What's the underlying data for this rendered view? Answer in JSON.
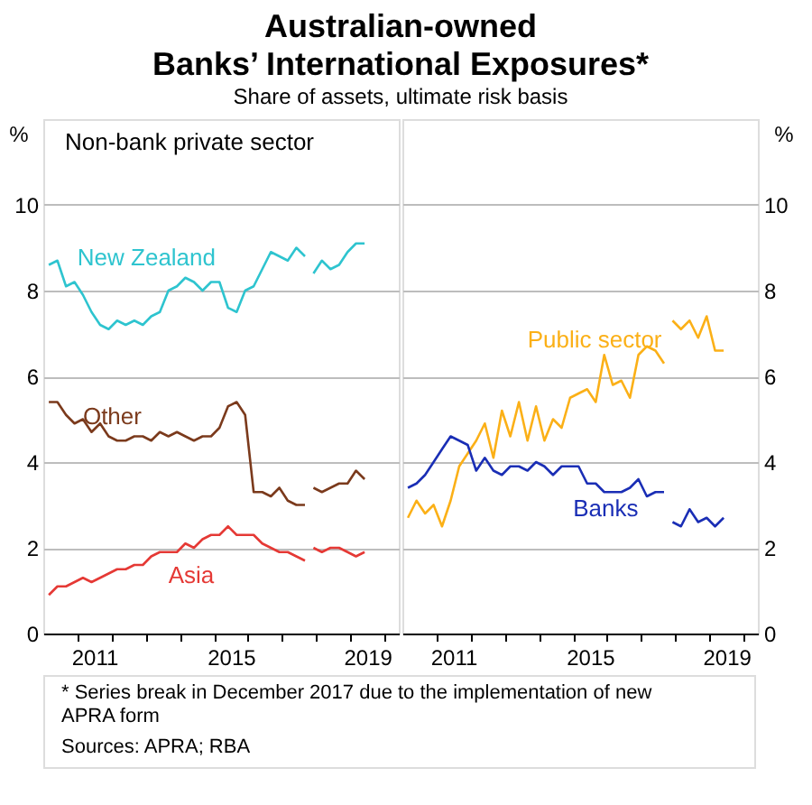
{
  "chart_data": [
    {
      "type": "line",
      "title": "Australian-owned\nBanks’ International Exposures*",
      "subtitle": "Share of assets, ultimate risk basis",
      "annotations": [
        "Non-bank private sector",
        "* Series break in December 2017 due to the implementation of new APRA form",
        "Sources: APRA; RBA"
      ],
      "x": [
        "2010-03",
        "2010-06",
        "2010-09",
        "2010-12",
        "2011-03",
        "2011-06",
        "2011-09",
        "2011-12",
        "2012-03",
        "2012-06",
        "2012-09",
        "2012-12",
        "2013-03",
        "2013-06",
        "2013-09",
        "2013-12",
        "2014-03",
        "2014-06",
        "2014-09",
        "2014-12",
        "2015-03",
        "2015-06",
        "2015-09",
        "2015-12",
        "2016-03",
        "2016-06",
        "2016-09",
        "2016-12",
        "2017-03",
        "2017-06",
        "2017-09",
        "2017-11",
        "2017-12",
        "2018-03",
        "2018-06",
        "2018-09",
        "2018-12",
        "2019-03",
        "2019-06"
      ],
      "series": [
        {
          "name": "New Zealand",
          "color": "#2ec4cf",
          "values": [
            8.6,
            8.7,
            8.1,
            8.2,
            7.9,
            7.5,
            7.2,
            7.1,
            7.3,
            7.2,
            7.3,
            7.2,
            7.4,
            7.5,
            8.0,
            8.1,
            8.3,
            8.2,
            8.0,
            8.2,
            8.2,
            7.6,
            7.5,
            8.0,
            8.1,
            8.5,
            8.9,
            8.8,
            8.7,
            9.0,
            8.8,
            null,
            8.4,
            8.7,
            8.5,
            8.6,
            8.9,
            9.1,
            9.1
          ]
        },
        {
          "name": "Other",
          "color": "#7b3a1c",
          "values": [
            5.4,
            5.4,
            5.1,
            4.9,
            5.0,
            4.7,
            4.9,
            4.6,
            4.5,
            4.5,
            4.6,
            4.6,
            4.5,
            4.7,
            4.6,
            4.7,
            4.6,
            4.5,
            4.6,
            4.6,
            4.8,
            5.3,
            5.4,
            5.1,
            3.3,
            3.3,
            3.2,
            3.4,
            3.1,
            3.0,
            3.0,
            null,
            3.4,
            3.3,
            3.4,
            3.5,
            3.5,
            3.8,
            3.6
          ]
        },
        {
          "name": "Asia",
          "color": "#e53935",
          "values": [
            0.9,
            1.1,
            1.1,
            1.2,
            1.3,
            1.2,
            1.3,
            1.4,
            1.5,
            1.5,
            1.6,
            1.6,
            1.8,
            1.9,
            1.9,
            1.9,
            2.1,
            2.0,
            2.2,
            2.3,
            2.3,
            2.5,
            2.3,
            2.3,
            2.3,
            2.1,
            2.0,
            1.9,
            1.9,
            1.8,
            1.7,
            null,
            2.0,
            1.9,
            2.0,
            2.0,
            1.9,
            1.8,
            1.9
          ]
        }
      ],
      "xlim": [
        "2010-01",
        "2020-06"
      ],
      "xticks": [
        {
          "value": "2011",
          "label": null
        },
        {
          "value": "2011-07",
          "label": "2011"
        },
        {
          "value": "2012",
          "label": null
        },
        {
          "value": "2013",
          "label": null
        },
        {
          "value": "2014",
          "label": null
        },
        {
          "value": "2015",
          "label": null
        },
        {
          "value": "2015-07",
          "label": "2015"
        },
        {
          "value": "2016",
          "label": null
        },
        {
          "value": "2017",
          "label": null
        },
        {
          "value": "2018",
          "label": null
        },
        {
          "value": "2019",
          "label": null
        },
        {
          "value": "2019-07",
          "label": "2019"
        },
        {
          "value": "2020",
          "label": null
        }
      ],
      "ylabel": "%",
      "ylim": [
        0,
        12
      ],
      "yticks": [
        0,
        2,
        4,
        6,
        8,
        10
      ],
      "grid": "y",
      "legend": false
    },
    {
      "type": "line",
      "x": [
        "2010-03",
        "2010-06",
        "2010-09",
        "2010-12",
        "2011-03",
        "2011-06",
        "2011-09",
        "2011-12",
        "2012-03",
        "2012-06",
        "2012-09",
        "2012-12",
        "2013-03",
        "2013-06",
        "2013-09",
        "2013-12",
        "2014-03",
        "2014-06",
        "2014-09",
        "2014-12",
        "2015-03",
        "2015-06",
        "2015-09",
        "2015-12",
        "2016-03",
        "2016-06",
        "2016-09",
        "2016-12",
        "2017-03",
        "2017-06",
        "2017-09",
        "2017-11",
        "2017-12",
        "2018-03",
        "2018-06",
        "2018-09",
        "2018-12",
        "2019-03",
        "2019-06"
      ],
      "series": [
        {
          "name": "Public sector",
          "color": "#fbb017",
          "values": [
            2.7,
            3.1,
            2.8,
            3.0,
            2.5,
            3.1,
            3.9,
            4.2,
            4.5,
            4.9,
            4.1,
            5.2,
            4.6,
            5.4,
            4.5,
            5.3,
            4.5,
            5.0,
            4.8,
            5.5,
            5.6,
            5.7,
            5.4,
            6.5,
            5.8,
            5.9,
            5.5,
            6.5,
            6.7,
            6.6,
            6.3,
            null,
            7.3,
            7.1,
            7.3,
            6.9,
            7.4,
            6.6,
            6.6
          ]
        },
        {
          "name": "Banks",
          "color": "#1a2eb5",
          "values": [
            3.4,
            3.5,
            3.7,
            4.0,
            4.3,
            4.6,
            4.5,
            4.4,
            3.8,
            4.1,
            3.8,
            3.7,
            3.9,
            3.9,
            3.8,
            4.0,
            3.9,
            3.7,
            3.9,
            3.9,
            3.9,
            3.5,
            3.5,
            3.3,
            3.3,
            3.3,
            3.4,
            3.6,
            3.2,
            3.3,
            3.3,
            null,
            2.6,
            2.5,
            2.9,
            2.6,
            2.7,
            2.5,
            2.7
          ]
        }
      ],
      "xlim": [
        "2010-01",
        "2020-06"
      ],
      "xticks": [
        {
          "value": "2011",
          "label": null
        },
        {
          "value": "2011-07",
          "label": "2011"
        },
        {
          "value": "2012",
          "label": null
        },
        {
          "value": "2013",
          "label": null
        },
        {
          "value": "2014",
          "label": null
        },
        {
          "value": "2015",
          "label": null
        },
        {
          "value": "2015-07",
          "label": "2015"
        },
        {
          "value": "2016",
          "label": null
        },
        {
          "value": "2017",
          "label": null
        },
        {
          "value": "2018",
          "label": null
        },
        {
          "value": "2019",
          "label": null
        },
        {
          "value": "2019-07",
          "label": "2019"
        },
        {
          "value": "2020",
          "label": null
        }
      ],
      "ylabel": "%",
      "ylim": [
        0,
        12
      ],
      "yticks": [
        0,
        2,
        4,
        6,
        8,
        10
      ],
      "grid": "y",
      "legend": false
    }
  ]
}
